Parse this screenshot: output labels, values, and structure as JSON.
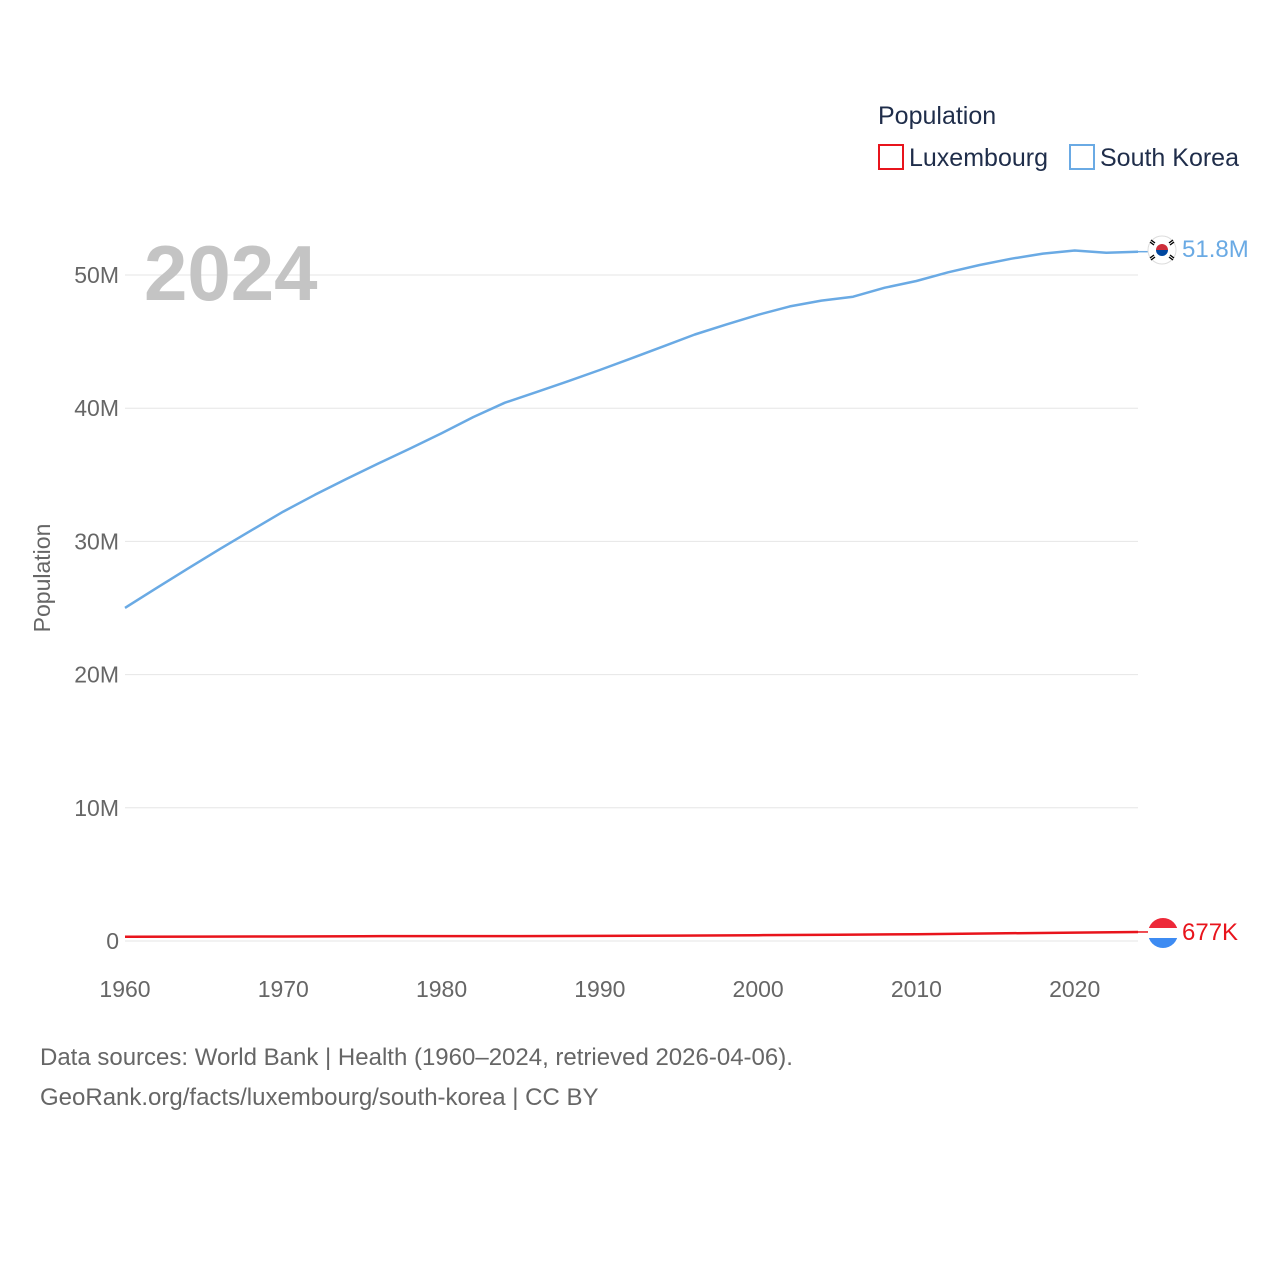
{
  "chart_data": {
    "type": "line",
    "title": "Population",
    "ylabel": "Population",
    "xlabel": "",
    "year_label": "2024",
    "xlim": [
      1960,
      2024
    ],
    "ylim": [
      0,
      50000000
    ],
    "x_ticks": [
      1960,
      1970,
      1980,
      1990,
      2000,
      2010,
      2020
    ],
    "x_tick_labels": [
      "1960",
      "1970",
      "1980",
      "1990",
      "2000",
      "2010",
      "2020"
    ],
    "y_ticks": [
      0,
      10000000,
      20000000,
      30000000,
      40000000,
      50000000
    ],
    "y_tick_labels": [
      "0",
      "10M",
      "20M",
      "30M",
      "40M",
      "50M"
    ],
    "grid": true,
    "legend_position": "top-right",
    "series": [
      {
        "name": "Luxembourg",
        "color": "#e8141c",
        "end_label": "677K",
        "flag": "luxembourg-flag",
        "x": [
          1960,
          1965,
          1970,
          1975,
          1980,
          1985,
          1990,
          1995,
          2000,
          2005,
          2010,
          2015,
          2020,
          2024
        ],
        "values": [
          313970,
          331500,
          339171,
          362300,
          364150,
          366700,
          381850,
          407650,
          436300,
          465150,
          506950,
          569600,
          630400,
          677000
        ]
      },
      {
        "name": "South Korea",
        "color": "#6aaae4",
        "end_label": "51.8M",
        "flag": "south-korea-flag",
        "x": [
          1960,
          1962,
          1964,
          1966,
          1968,
          1970,
          1972,
          1974,
          1976,
          1978,
          1980,
          1982,
          1984,
          1986,
          1988,
          1990,
          1992,
          1994,
          1996,
          1998,
          2000,
          2002,
          2004,
          2006,
          2008,
          2010,
          2012,
          2014,
          2016,
          2018,
          2020,
          2022,
          2024
        ],
        "values": [
          25010000,
          26510000,
          27980000,
          29440000,
          30840000,
          32240000,
          33500000,
          34690000,
          35850000,
          36970000,
          38120000,
          39330000,
          40410000,
          41210000,
          42030000,
          42870000,
          43750000,
          44640000,
          45530000,
          46290000,
          47010000,
          47640000,
          48080000,
          48370000,
          49050000,
          49550000,
          50200000,
          50750000,
          51220000,
          51610000,
          51840000,
          51670000,
          51750000
        ]
      }
    ]
  },
  "legend": {
    "title": "Population",
    "items": [
      {
        "label": "Luxembourg",
        "color": "#e8141c"
      },
      {
        "label": "South Korea",
        "color": "#6aaae4"
      }
    ]
  },
  "footer": {
    "line1": "Data sources: World Bank | Health (1960–2024, retrieved 2026-04-06).",
    "line2": "GeoRank.org/facts/luxembourg/south-korea | CC BY"
  }
}
